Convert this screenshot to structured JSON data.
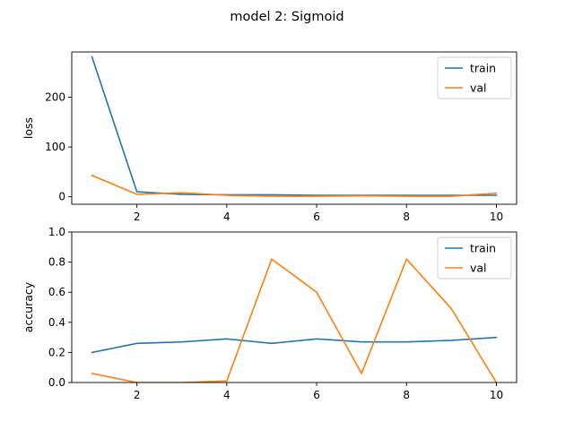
{
  "title": "model 2: Sigmoid",
  "colors": {
    "train": "#1f77b4",
    "val": "#ff7f0e"
  },
  "chart_data": [
    {
      "type": "line",
      "ylabel": "loss",
      "xlabel": "",
      "x": [
        1,
        2,
        3,
        4,
        5,
        6,
        7,
        8,
        9,
        10
      ],
      "xlim": [
        0.55,
        10.45
      ],
      "ylim": [
        -15,
        291
      ],
      "xticks": [
        2,
        4,
        6,
        8,
        10
      ],
      "yticks": [
        0,
        100,
        200
      ],
      "legend_position": "upper right",
      "series": [
        {
          "name": "train",
          "values": [
            281,
            10,
            5,
            4,
            4,
            3,
            3,
            3,
            3,
            3
          ]
        },
        {
          "name": "val",
          "values": [
            43,
            5,
            8,
            3,
            1,
            1,
            2,
            1,
            1,
            7
          ]
        }
      ]
    },
    {
      "type": "line",
      "ylabel": "accuracy",
      "xlabel": "",
      "x": [
        1,
        2,
        3,
        4,
        5,
        6,
        7,
        8,
        9,
        10
      ],
      "xlim": [
        0.55,
        10.45
      ],
      "ylim": [
        0,
        1.0
      ],
      "xticks": [
        2,
        4,
        6,
        8,
        10
      ],
      "yticks": [
        0.0,
        0.2,
        0.4,
        0.6,
        0.8,
        1.0
      ],
      "ytick_labels": [
        "0.0",
        "0.2",
        "0.4",
        "0.6",
        "0.8",
        "1.0"
      ],
      "legend_position": "upper right",
      "series": [
        {
          "name": "train",
          "values": [
            0.2,
            0.26,
            0.27,
            0.29,
            0.26,
            0.29,
            0.27,
            0.27,
            0.28,
            0.3
          ]
        },
        {
          "name": "val",
          "values": [
            0.06,
            0.0,
            0.0,
            0.01,
            0.82,
            0.6,
            0.06,
            0.82,
            0.49,
            0.0
          ]
        }
      ]
    }
  ]
}
